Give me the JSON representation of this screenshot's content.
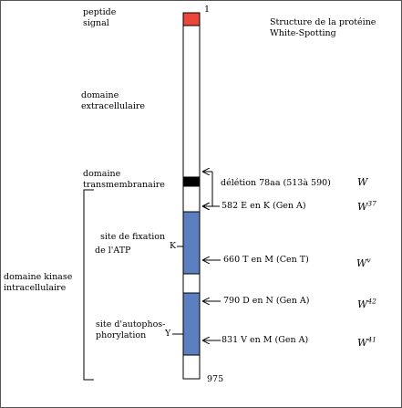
{
  "title_line1": "Structure de la protéine",
  "title_line2": "White-Spotting",
  "start_number": "1",
  "end_number": "975",
  "domains": {
    "signal_line1": "peptide",
    "signal_line2": "signal",
    "extra_line1": "domaine",
    "extra_line2": "extracellulaire",
    "tm_line1": "domaine",
    "tm_line2": "transmembranaire",
    "kinase_line1": "domaine kinase",
    "kinase_line2": "intracellulaire"
  },
  "sites": {
    "atp_line1": "site de fixation",
    "atp_line2": "de l'ATP",
    "atp_residue": "K",
    "auto_line1": "site d'autophos-",
    "auto_line2": "phorylation",
    "auto_residue": "Y"
  },
  "mutations": [
    {
      "text": "délétion 78aa (513à 590)",
      "allele": "W",
      "sup": ""
    },
    {
      "text": "582  E en K (Gen A)",
      "allele": "W",
      "sup": "37"
    },
    {
      "text": "660 T en M (Cen T)",
      "allele": "W",
      "sup": "v"
    },
    {
      "text": "790 D en N (Gen A)",
      "allele": "W",
      "sup": "42"
    },
    {
      "text": "831 V en M (Gen A)",
      "allele": "W",
      "sup": "41"
    }
  ],
  "colors": {
    "signal": "#e8473a",
    "tm": "#000000",
    "kinase": "#5b7fbf",
    "outline": "#000000"
  }
}
